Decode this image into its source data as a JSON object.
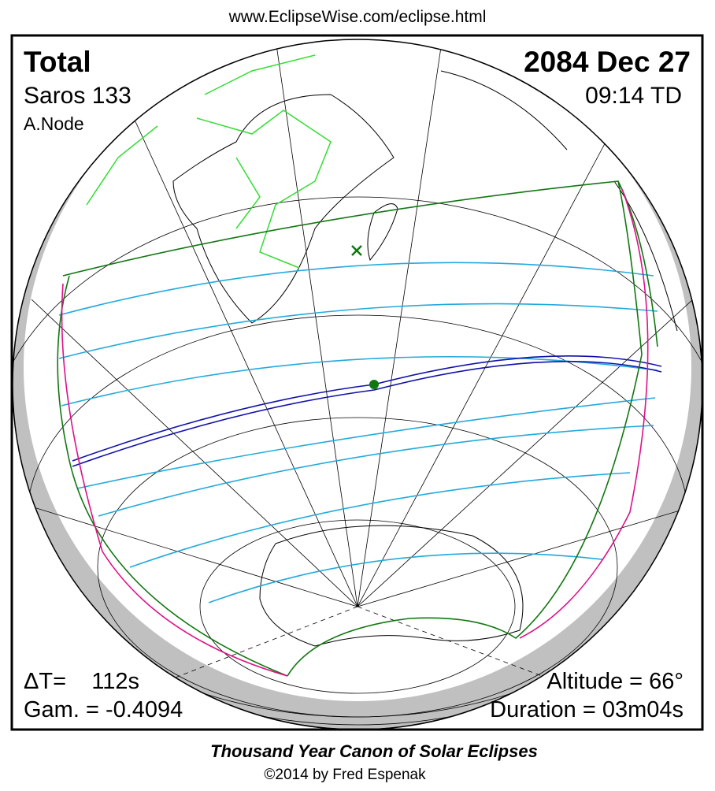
{
  "header": {
    "url": "www.EclipseWise.com/eclipse.html"
  },
  "eclipse": {
    "type": "Total",
    "date": "2084 Dec 27",
    "saros": "Saros 133",
    "time": "09:14 TD",
    "node": "A.Node",
    "delta_t": "ΔT=    112s",
    "gamma": "Gam. = -0.4094",
    "altitude": "Altitude = 66°",
    "duration": "Duration = 03m04s"
  },
  "footer": {
    "title": "Thousand Year Canon of Solar Eclipses",
    "credit": "©2014 by Fred Espenak"
  }
}
